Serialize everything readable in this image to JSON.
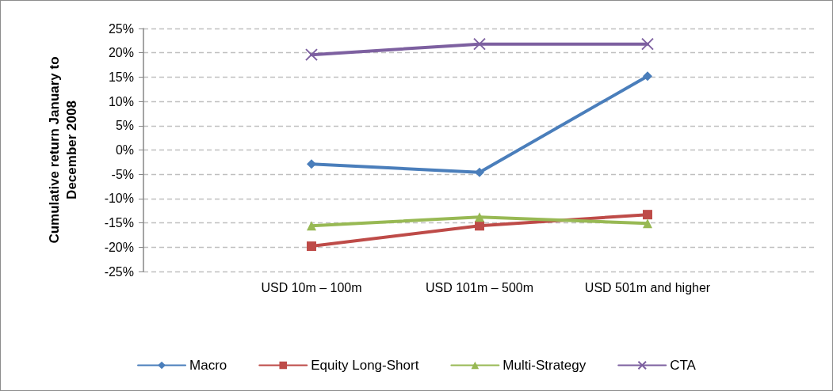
{
  "chart_data": {
    "type": "line",
    "ylabel": "Cumulative return January to\nDecember 2008",
    "categories": [
      null,
      "USD 10m – 100m",
      "USD 101m – 500m",
      "USD 501m and higher"
    ],
    "series": [
      {
        "name": "Macro",
        "color": "#4a7ebb",
        "marker": "diamond",
        "values": [
          null,
          -2.9,
          -4.6,
          15.2
        ]
      },
      {
        "name": "Equity Long-Short",
        "color": "#be4b48",
        "marker": "square",
        "values": [
          null,
          -19.8,
          -15.6,
          -13.3
        ]
      },
      {
        "name": "Multi-Strategy",
        "color": "#98b954",
        "marker": "triangle",
        "values": [
          null,
          -15.6,
          -13.8,
          -15.1
        ]
      },
      {
        "name": "CTA",
        "color": "#7d60a0",
        "marker": "cross",
        "values": [
          null,
          19.6,
          21.8,
          21.8
        ]
      }
    ],
    "ylim": [
      -25,
      25
    ],
    "yticks": [
      {
        "value": -25,
        "label": "-25%"
      },
      {
        "value": -20,
        "label": "-20%"
      },
      {
        "value": -15,
        "label": "-15%"
      },
      {
        "value": -10,
        "label": "-10%"
      },
      {
        "value": -5,
        "label": "-5%"
      },
      {
        "value": 0,
        "label": "0%"
      },
      {
        "value": 5,
        "label": "5%"
      },
      {
        "value": 10,
        "label": "10%"
      },
      {
        "value": 15,
        "label": "15%"
      },
      {
        "value": 20,
        "label": "20%"
      },
      {
        "value": 25,
        "label": "25%"
      }
    ],
    "grid": "y",
    "legend": "bottom",
    "line_style": "solid"
  }
}
